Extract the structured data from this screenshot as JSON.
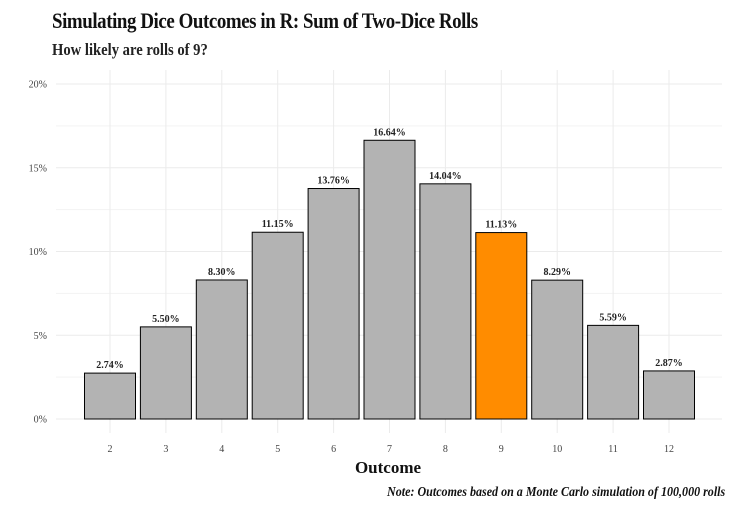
{
  "title": "Simulating Dice Outcomes in R:  Sum of Two-Dice Rolls",
  "subtitle": "How likely are rolls of 9?",
  "caption": "Note: Outcomes based on a Monte Carlo simulation of 100,000 rolls",
  "colors": {
    "bar": "#b3b3b3",
    "highlight": "#ff8c00",
    "bar_stroke": "#000000",
    "grid": "#ebebeb"
  },
  "chart_data": {
    "type": "bar",
    "categories": [
      "2",
      "3",
      "4",
      "5",
      "6",
      "7",
      "8",
      "9",
      "10",
      "11",
      "12"
    ],
    "values": [
      2.74,
      5.5,
      8.3,
      11.15,
      13.76,
      16.64,
      14.04,
      11.13,
      8.29,
      5.59,
      2.87
    ],
    "data_labels": [
      "2.74%",
      "5.50%",
      "8.30%",
      "11.15%",
      "13.76%",
      "16.64%",
      "14.04%",
      "11.13%",
      "8.29%",
      "5.59%",
      "2.87%"
    ],
    "highlight_category": "9",
    "xlabel": "Outcome",
    "ylabel": "",
    "ylim": [
      0,
      20
    ],
    "yticks": [
      0,
      5,
      10,
      15,
      20
    ],
    "ytick_labels": [
      "0%",
      "5%",
      "10%",
      "15%",
      "20%"
    ],
    "grid": true,
    "legend": "none"
  }
}
